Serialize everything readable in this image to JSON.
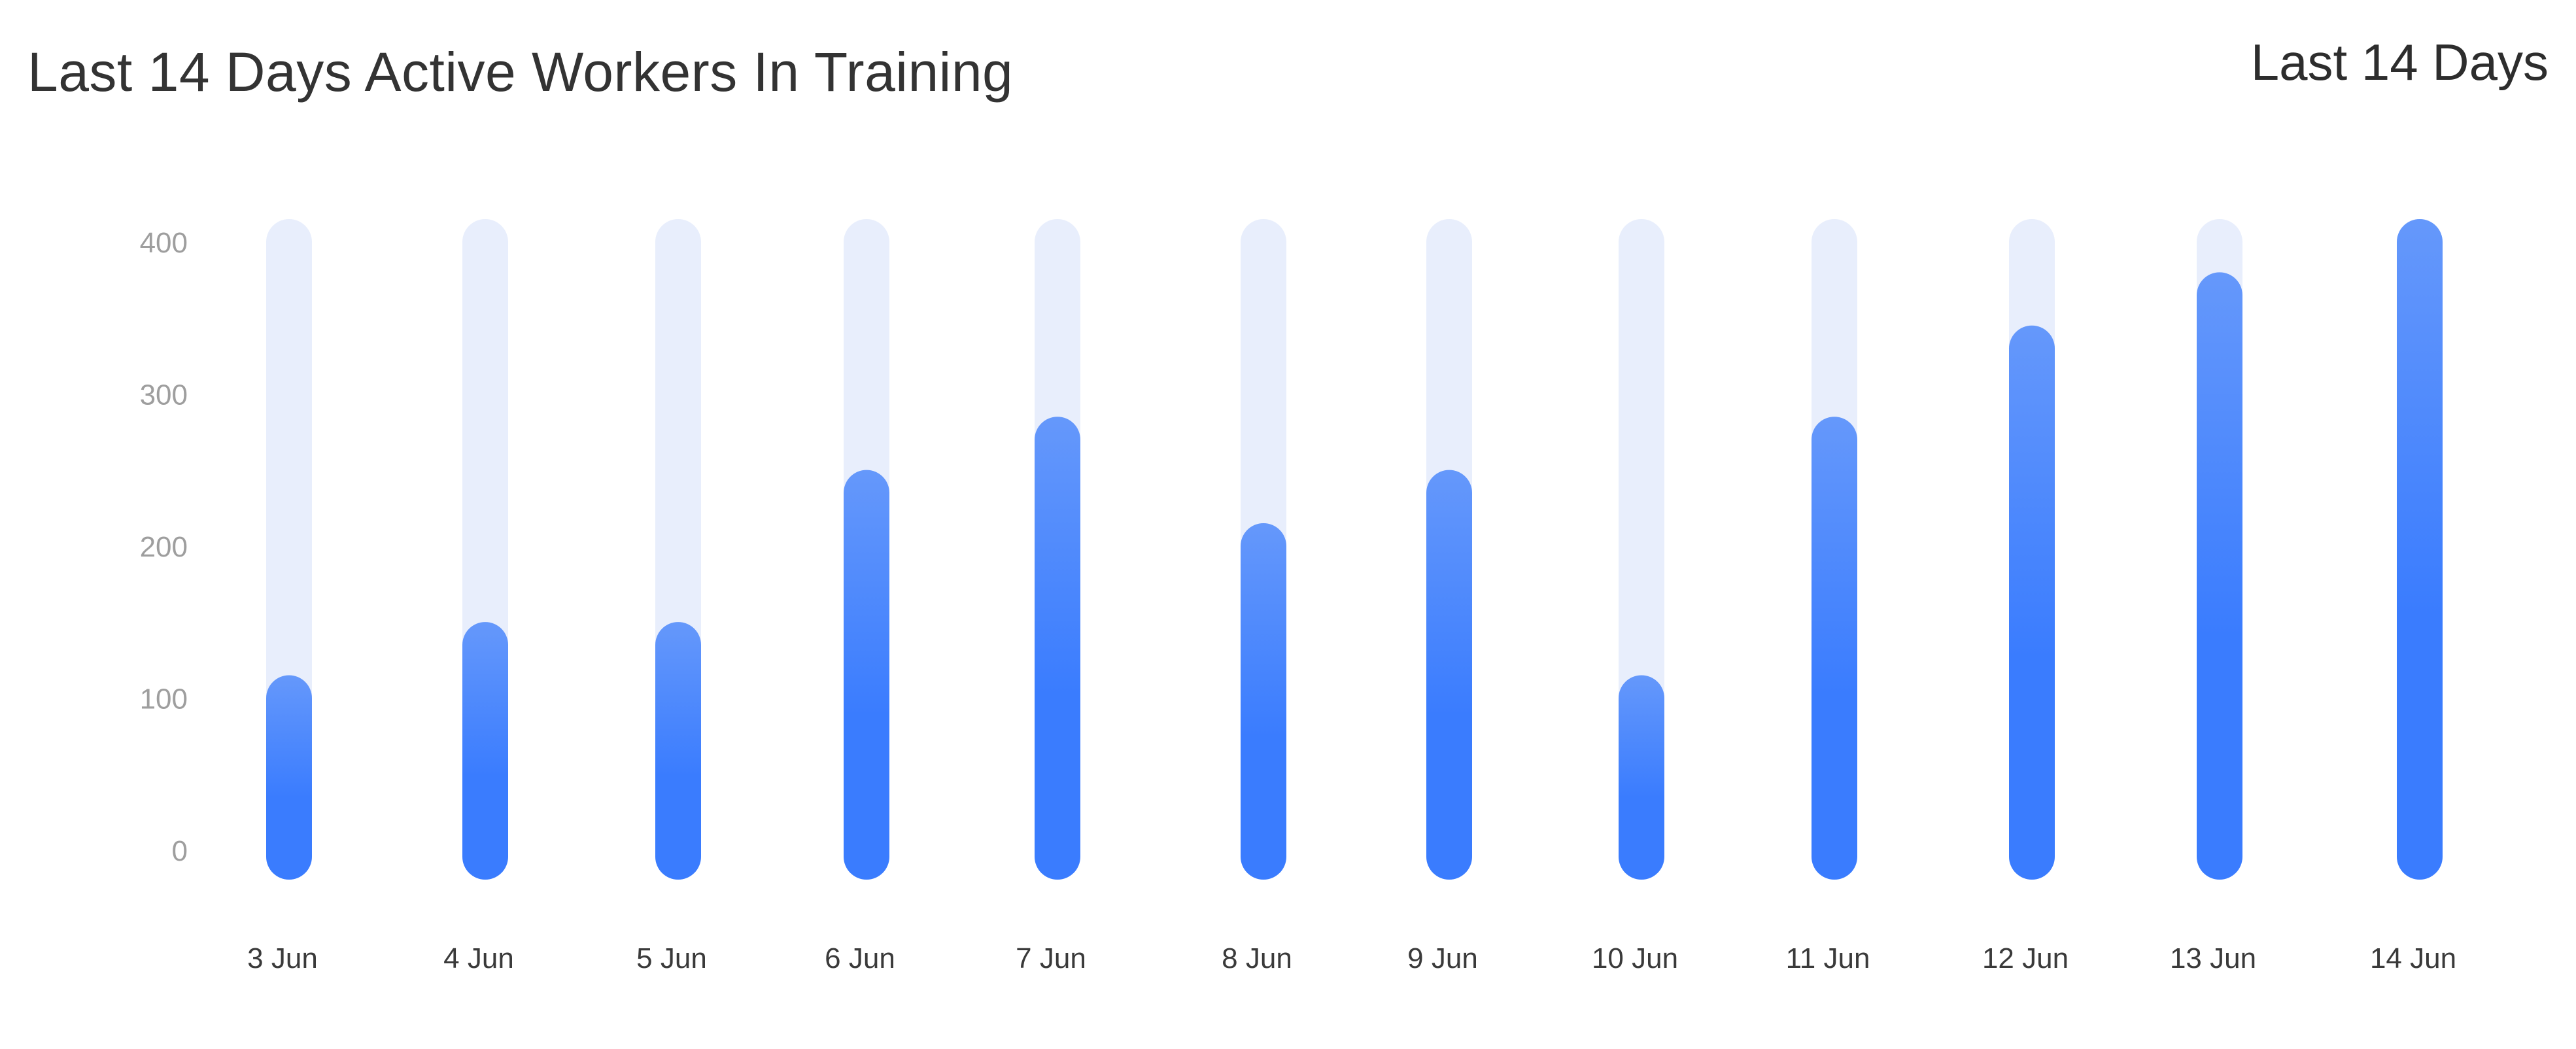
{
  "header": {
    "title": "Last 14 Days Active Workers In Training",
    "range_label": "Last 14 Days"
  },
  "colors": {
    "bar_fill_top": "#6598fb",
    "bar_fill_bottom": "#3a7cfe",
    "bar_track": "#e8eefc",
    "y_tick": "#9e9e9e",
    "x_tick": "#3a3a3a"
  },
  "chart_data": {
    "type": "bar",
    "title": "Last 14 Days Active Workers In Training",
    "xlabel": "",
    "ylabel": "",
    "ylim": [
      0,
      400
    ],
    "yticks": [
      0,
      100,
      200,
      300,
      400
    ],
    "categories": [
      "3 Jun",
      "4 Jun",
      "5 Jun",
      "6 Jun",
      "7 Jun",
      "8 Jun",
      "9 Jun",
      "10 Jun",
      "11 Jun",
      "12 Jun",
      "13 Jun",
      "14 Jun"
    ],
    "values": [
      100,
      135,
      135,
      235,
      270,
      200,
      235,
      100,
      270,
      330,
      365,
      400
    ],
    "grid": false,
    "legend": "none"
  }
}
